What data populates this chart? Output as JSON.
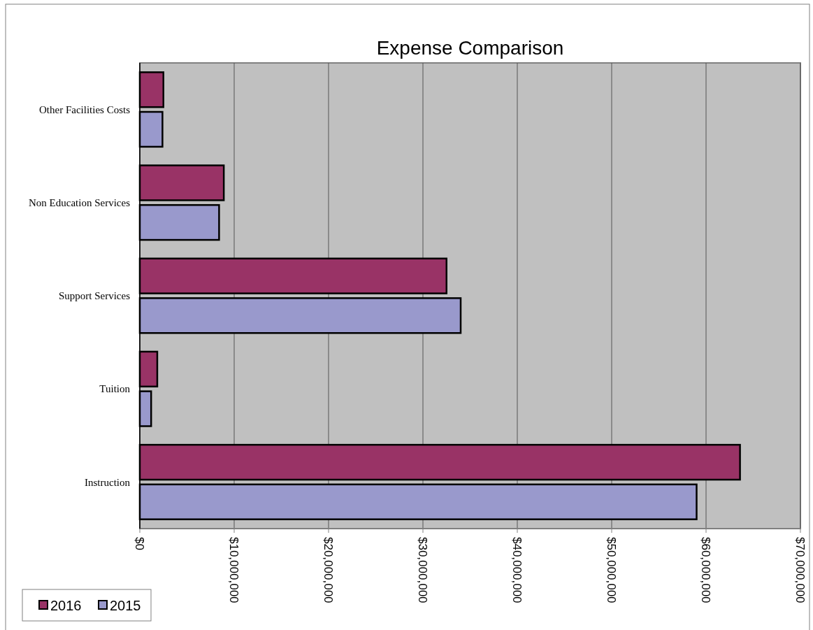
{
  "chart_data": {
    "type": "bar",
    "title": "Expense Comparison",
    "orientation": "horizontal",
    "categories": [
      "Other Facilities Costs",
      "Non Education Services",
      "Support Services",
      "Tuition",
      "Instruction"
    ],
    "series": [
      {
        "name": "2016",
        "color": "#993366",
        "values": [
          2500000,
          8900000,
          32500000,
          1850000,
          63600000
        ]
      },
      {
        "name": "2015",
        "color": "#9999cc",
        "values": [
          2400000,
          8400000,
          34000000,
          1200000,
          59000000
        ]
      }
    ],
    "xlim": [
      0,
      70000000
    ],
    "xticks": [
      {
        "value": 0,
        "label": "$0"
      },
      {
        "value": 10000000,
        "label": "$10,000,000"
      },
      {
        "value": 20000000,
        "label": "$20,000,000"
      },
      {
        "value": 30000000,
        "label": "$30,000,000"
      },
      {
        "value": 40000000,
        "label": "$40,000,000"
      },
      {
        "value": 50000000,
        "label": "$50,000,000"
      },
      {
        "value": 60000000,
        "label": "$60,000,000"
      },
      {
        "value": 70000000,
        "label": "$70,000,000"
      }
    ],
    "grid": "x",
    "legend": "bottom left"
  }
}
